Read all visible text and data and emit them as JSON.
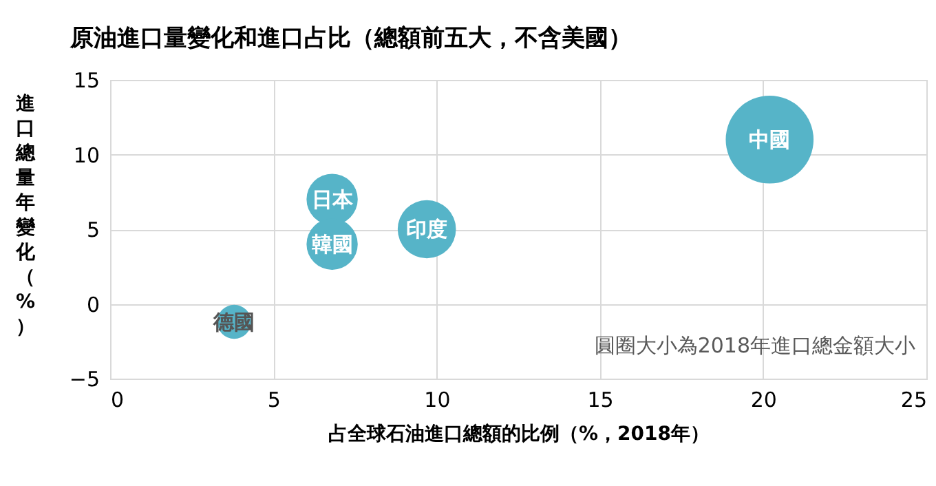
{
  "chart_data": {
    "type": "bubble",
    "title": "原油進口量變化和進口占比（總額前五大，不含美國）",
    "xlabel": "占全球石油進口總額的比例（%，2018年）",
    "ylabel": "進口總量年變化（%）",
    "xlim": [
      0,
      25
    ],
    "xticks": [
      0,
      5,
      10,
      15,
      20,
      25
    ],
    "ylim": [
      -5,
      15
    ],
    "yticks": [
      -5,
      0,
      5,
      10,
      15
    ],
    "grid": true,
    "legend": false,
    "annotations": [
      "圓圈大小為2018年進口總金額大小"
    ],
    "series": [
      {
        "name": "中國",
        "color": "#56b4c8",
        "x": [
          20.2
        ],
        "values": [
          11.0
        ],
        "sizes": [
          1
        ]
      },
      {
        "name": "日本",
        "color": "#56b4c8",
        "x": [
          6.8
        ],
        "values": [
          7.0
        ],
        "sizes": [
          0.34
        ]
      },
      {
        "name": "韓國",
        "color": "#56b4c8",
        "x": [
          6.8
        ],
        "values": [
          4.0
        ],
        "sizes": [
          0.34
        ]
      },
      {
        "name": "印度",
        "color": "#56b4c8",
        "x": [
          9.7
        ],
        "values": [
          5.0
        ],
        "sizes": [
          0.44
        ]
      },
      {
        "name": "德國",
        "color": "#56b4c8",
        "x": [
          3.8
        ],
        "values": [
          -1.2
        ],
        "sizes": [
          0.15
        ]
      }
    ]
  }
}
